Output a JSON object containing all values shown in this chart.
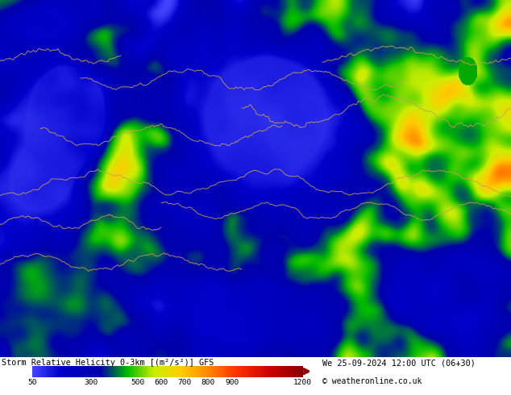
{
  "title_left": "Storm Relative Helicity 0-3km [(m²/s²)] GFS",
  "title_right": "We 25-09-2024 12:00 UTC (06+30)",
  "copyright": "© weatheronline.co.uk",
  "colorbar_ticks": [
    50,
    300,
    500,
    600,
    700,
    800,
    900,
    1200
  ],
  "bottom_bar_bg": "#c8e8c8",
  "figsize": [
    6.34,
    4.9
  ],
  "dpi": 100,
  "map_bg": "#0a0aaa",
  "colorbar_gradient": [
    [
      0.0,
      "#4444ff"
    ],
    [
      0.1,
      "#0000cc"
    ],
    [
      0.25,
      "#0000aa"
    ],
    [
      0.35,
      "#00bb00"
    ],
    [
      0.45,
      "#ccee00"
    ],
    [
      0.55,
      "#ffcc00"
    ],
    [
      0.65,
      "#ff8800"
    ],
    [
      0.75,
      "#ff3300"
    ],
    [
      0.88,
      "#cc0000"
    ],
    [
      1.0,
      "#880000"
    ]
  ],
  "seed": 42
}
